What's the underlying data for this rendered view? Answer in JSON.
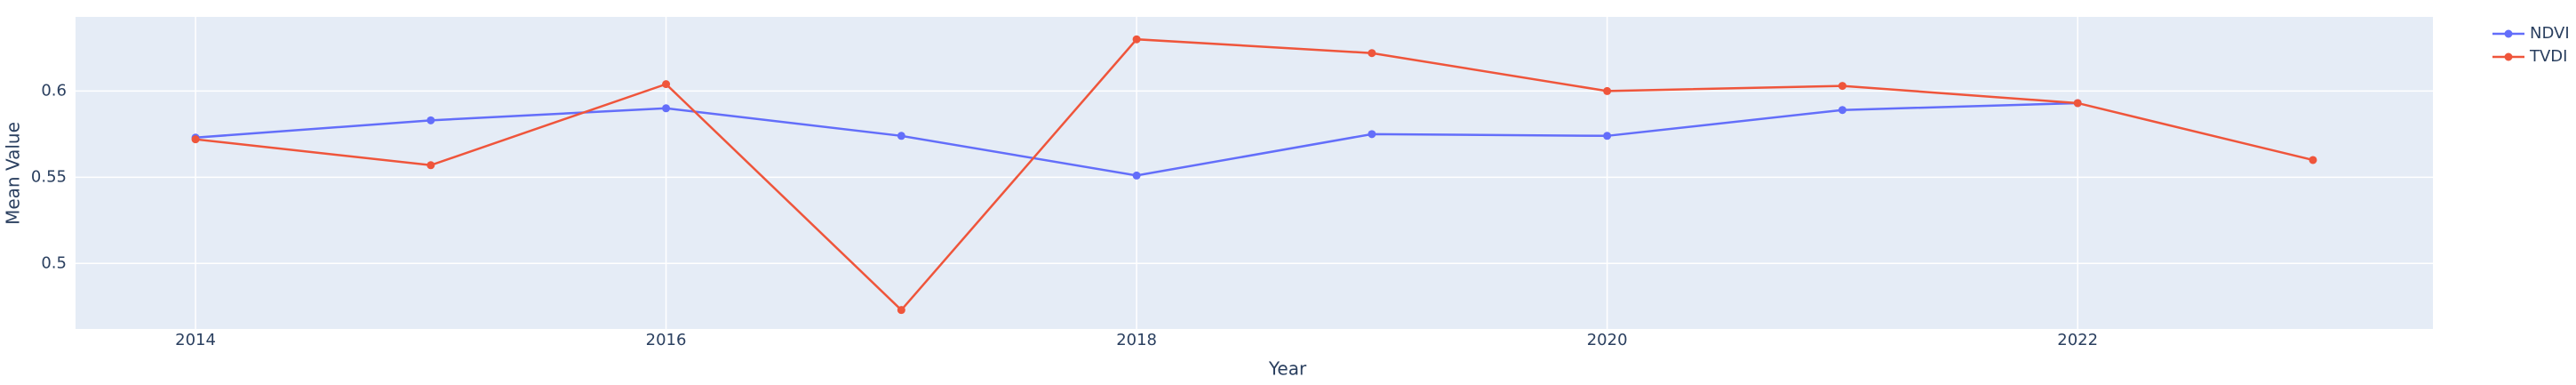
{
  "chart_data": {
    "type": "line",
    "x": [
      2014,
      2015,
      2016,
      2017,
      2018,
      2019,
      2020,
      2021,
      2022,
      2023
    ],
    "series": [
      {
        "name": "NDVI",
        "color": "#636efa",
        "values": [
          0.573,
          0.583,
          0.59,
          0.574,
          0.551,
          0.575,
          0.574,
          0.589,
          0.593,
          null
        ]
      },
      {
        "name": "TVDI",
        "color": "#ef553b",
        "values": [
          0.572,
          0.557,
          0.604,
          0.473,
          0.63,
          0.622,
          0.6,
          0.603,
          0.593,
          0.56
        ]
      }
    ],
    "x_label": "Year",
    "y_label": "Mean Value",
    "xlim": [
      2013.49,
      2023.51
    ],
    "ylim": [
      0.462,
      0.643
    ],
    "xticks": [
      2014,
      2016,
      2018,
      2020,
      2022
    ],
    "yticks": [
      0.5,
      0.55,
      0.6
    ],
    "grid": true,
    "legend": "top-right"
  }
}
